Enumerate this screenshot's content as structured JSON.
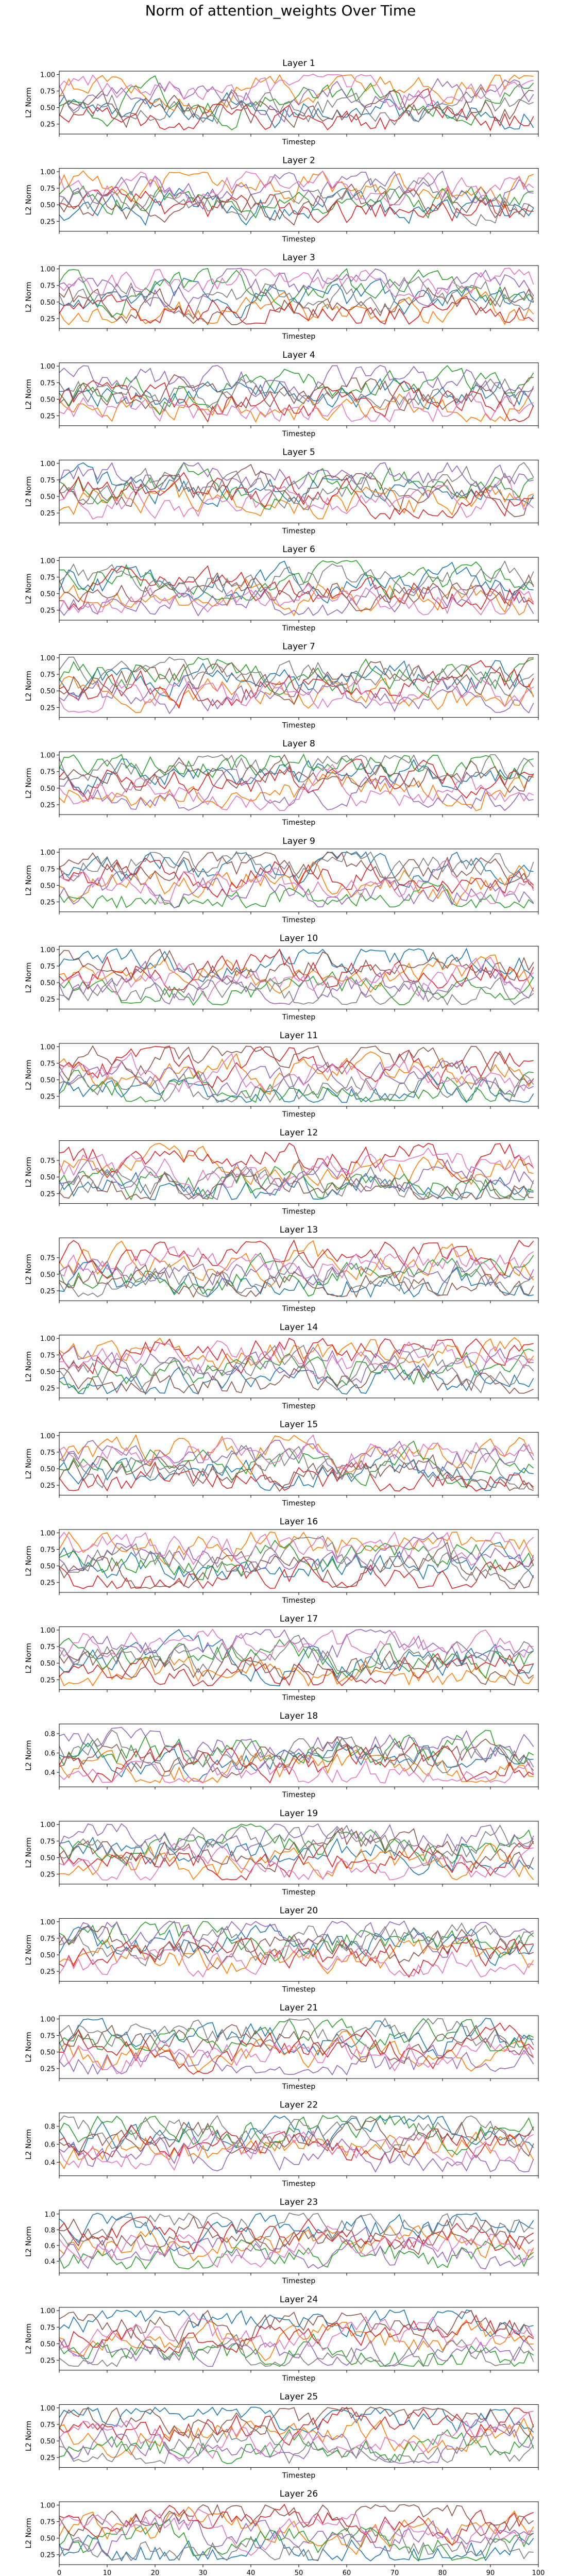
{
  "figure": {
    "title": "Norm of attention_weights Over Time",
    "x_label": "Timestep",
    "y_label": "L2 Norm",
    "colors": [
      "#1f77b4",
      "#ff7f0e",
      "#2ca02c",
      "#d62728",
      "#9467bd",
      "#8c564b",
      "#e377c2",
      "#7f7f7f"
    ]
  },
  "chart_data": {
    "type": "line",
    "x": {
      "min": 0,
      "max": 100,
      "ticks": [
        0,
        10,
        20,
        30,
        40,
        50,
        60,
        70,
        80,
        90,
        100
      ],
      "tick_labels_on_last_only": true
    },
    "points_per_series": 100,
    "series_per_panel": 8,
    "grid": false,
    "legend": "none",
    "panels": [
      {
        "title": "Layer 1",
        "ylim": [
          0.1,
          1.05
        ],
        "yticks": [
          0.25,
          0.5,
          0.75,
          1.0
        ],
        "ytick_labels": [
          "0.25",
          "0.50",
          "0.75",
          "1.00"
        ]
      },
      {
        "title": "Layer 2",
        "ylim": [
          0.1,
          1.05
        ],
        "yticks": [
          0.25,
          0.5,
          0.75,
          1.0
        ],
        "ytick_labels": [
          "0.25",
          "0.50",
          "0.75",
          "1.00"
        ]
      },
      {
        "title": "Layer 3",
        "ylim": [
          0.1,
          1.05
        ],
        "yticks": [
          0.25,
          0.5,
          0.75,
          1.0
        ],
        "ytick_labels": [
          "0.25",
          "0.50",
          "0.75",
          "1.00"
        ]
      },
      {
        "title": "Layer 4",
        "ylim": [
          0.1,
          1.05
        ],
        "yticks": [
          0.25,
          0.5,
          0.75,
          1.0
        ],
        "ytick_labels": [
          "0.25",
          "0.50",
          "0.75",
          "1.00"
        ]
      },
      {
        "title": "Layer 5",
        "ylim": [
          0.1,
          1.05
        ],
        "yticks": [
          0.25,
          0.5,
          0.75,
          1.0
        ],
        "ytick_labels": [
          "0.25",
          "0.50",
          "0.75",
          "1.00"
        ]
      },
      {
        "title": "Layer 6",
        "ylim": [
          0.1,
          1.05
        ],
        "yticks": [
          0.25,
          0.5,
          0.75,
          1.0
        ],
        "ytick_labels": [
          "0.25",
          "0.50",
          "0.75",
          "1.00"
        ]
      },
      {
        "title": "Layer 7",
        "ylim": [
          0.1,
          1.05
        ],
        "yticks": [
          0.25,
          0.5,
          0.75,
          1.0
        ],
        "ytick_labels": [
          "0.25",
          "0.50",
          "0.75",
          "1.00"
        ]
      },
      {
        "title": "Layer 8",
        "ylim": [
          0.1,
          1.05
        ],
        "yticks": [
          0.25,
          0.5,
          0.75,
          1.0
        ],
        "ytick_labels": [
          "0.25",
          "0.50",
          "0.75",
          "1.00"
        ]
      },
      {
        "title": "Layer 9",
        "ylim": [
          0.1,
          1.05
        ],
        "yticks": [
          0.25,
          0.5,
          0.75,
          1.0
        ],
        "ytick_labels": [
          "0.25",
          "0.50",
          "0.75",
          "1.00"
        ]
      },
      {
        "title": "Layer 10",
        "ylim": [
          0.1,
          1.05
        ],
        "yticks": [
          0.25,
          0.5,
          0.75,
          1.0
        ],
        "ytick_labels": [
          "0.25",
          "0.50",
          "0.75",
          "1.00"
        ]
      },
      {
        "title": "Layer 11",
        "ylim": [
          0.1,
          1.05
        ],
        "yticks": [
          0.25,
          0.5,
          0.75,
          1.0
        ],
        "ytick_labels": [
          "0.25",
          "0.50",
          "0.75",
          "1.00"
        ]
      },
      {
        "title": "Layer 12",
        "ylim": [
          0.1,
          1.05
        ],
        "yticks": [
          0.25,
          0.5,
          0.75
        ],
        "ytick_labels": [
          "0.25",
          "0.50",
          "0.75"
        ]
      },
      {
        "title": "Layer 13",
        "ylim": [
          0.1,
          1.05
        ],
        "yticks": [
          0.25,
          0.5,
          0.75
        ],
        "ytick_labels": [
          "0.25",
          "0.50",
          "0.75"
        ]
      },
      {
        "title": "Layer 14",
        "ylim": [
          0.1,
          1.05
        ],
        "yticks": [
          0.25,
          0.5,
          0.75,
          1.0
        ],
        "ytick_labels": [
          "0.25",
          "0.50",
          "0.75",
          "1.00"
        ]
      },
      {
        "title": "Layer 15",
        "ylim": [
          0.1,
          1.05
        ],
        "yticks": [
          0.25,
          0.5,
          0.75,
          1.0
        ],
        "ytick_labels": [
          "0.25",
          "0.50",
          "0.75",
          "1.00"
        ]
      },
      {
        "title": "Layer 16",
        "ylim": [
          0.1,
          1.05
        ],
        "yticks": [
          0.25,
          0.5,
          0.75,
          1.0
        ],
        "ytick_labels": [
          "0.25",
          "0.50",
          "0.75",
          "1.00"
        ]
      },
      {
        "title": "Layer 17",
        "ylim": [
          0.1,
          1.05
        ],
        "yticks": [
          0.25,
          0.5,
          0.75,
          1.0
        ],
        "ytick_labels": [
          "0.25",
          "0.50",
          "0.75",
          "1.00"
        ]
      },
      {
        "title": "Layer 18",
        "ylim": [
          0.25,
          0.9
        ],
        "yticks": [
          0.4,
          0.6,
          0.8
        ],
        "ytick_labels": [
          "0.4",
          "0.6",
          "0.8"
        ]
      },
      {
        "title": "Layer 19",
        "ylim": [
          0.1,
          1.05
        ],
        "yticks": [
          0.25,
          0.5,
          0.75,
          1.0
        ],
        "ytick_labels": [
          "0.25",
          "0.50",
          "0.75",
          "1.00"
        ]
      },
      {
        "title": "Layer 20",
        "ylim": [
          0.1,
          1.05
        ],
        "yticks": [
          0.25,
          0.5,
          0.75,
          1.0
        ],
        "ytick_labels": [
          "0.25",
          "0.50",
          "0.75",
          "1.00"
        ]
      },
      {
        "title": "Layer 21",
        "ylim": [
          0.1,
          1.05
        ],
        "yticks": [
          0.25,
          0.5,
          0.75,
          1.0
        ],
        "ytick_labels": [
          "0.25",
          "0.50",
          "0.75",
          "1.00"
        ]
      },
      {
        "title": "Layer 22",
        "ylim": [
          0.25,
          0.95
        ],
        "yticks": [
          0.4,
          0.6,
          0.8
        ],
        "ytick_labels": [
          "0.4",
          "0.6",
          "0.8"
        ]
      },
      {
        "title": "Layer 23",
        "ylim": [
          0.25,
          1.05
        ],
        "yticks": [
          0.4,
          0.6,
          0.8,
          1.0
        ],
        "ytick_labels": [
          "0.4",
          "0.6",
          "0.8",
          "1.0"
        ]
      },
      {
        "title": "Layer 24",
        "ylim": [
          0.1,
          1.05
        ],
        "yticks": [
          0.25,
          0.5,
          0.75,
          1.0
        ],
        "ytick_labels": [
          "0.25",
          "0.50",
          "0.75",
          "1.00"
        ]
      },
      {
        "title": "Layer 25",
        "ylim": [
          0.1,
          1.05
        ],
        "yticks": [
          0.25,
          0.5,
          0.75,
          1.0
        ],
        "ytick_labels": [
          "0.25",
          "0.50",
          "0.75",
          "1.00"
        ]
      },
      {
        "title": "Layer 26",
        "ylim": [
          0.1,
          1.05
        ],
        "yticks": [
          0.25,
          0.5,
          0.75,
          1.0
        ],
        "ytick_labels": [
          "0.25",
          "0.50",
          "0.75",
          "1.00"
        ]
      }
    ]
  }
}
